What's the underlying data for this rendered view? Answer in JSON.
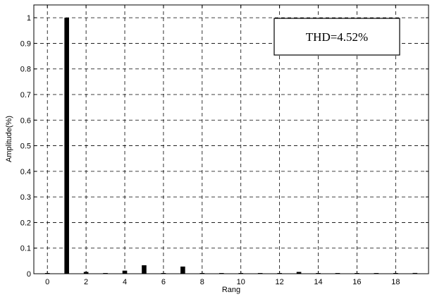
{
  "chart_data": {
    "type": "bar",
    "xlabel": "Rang",
    "ylabel": "Amplitude(%)",
    "xlim": [
      -0.7,
      19.7
    ],
    "ylim": [
      0,
      1.05
    ],
    "xticks": [
      0,
      2,
      4,
      6,
      8,
      10,
      12,
      14,
      16,
      18
    ],
    "yticks": [
      0,
      0.1,
      0.2,
      0.3,
      0.4,
      0.5,
      0.6,
      0.7,
      0.8,
      0.9,
      1
    ],
    "x": [
      0,
      1,
      2,
      3,
      4,
      5,
      6,
      7,
      8,
      9,
      10,
      11,
      12,
      13,
      14,
      15,
      16,
      17,
      18,
      19
    ],
    "values": [
      0.0,
      1.0,
      0.007,
      0.002,
      0.012,
      0.033,
      0.002,
      0.028,
      0.002,
      0.002,
      0.001,
      0.001,
      0.001,
      0.007,
      0.002,
      0.001,
      0.001,
      0.001,
      0.001,
      0.003
    ],
    "grid": true,
    "annotation": "THD=4.52%",
    "bar_color": "#000000"
  }
}
